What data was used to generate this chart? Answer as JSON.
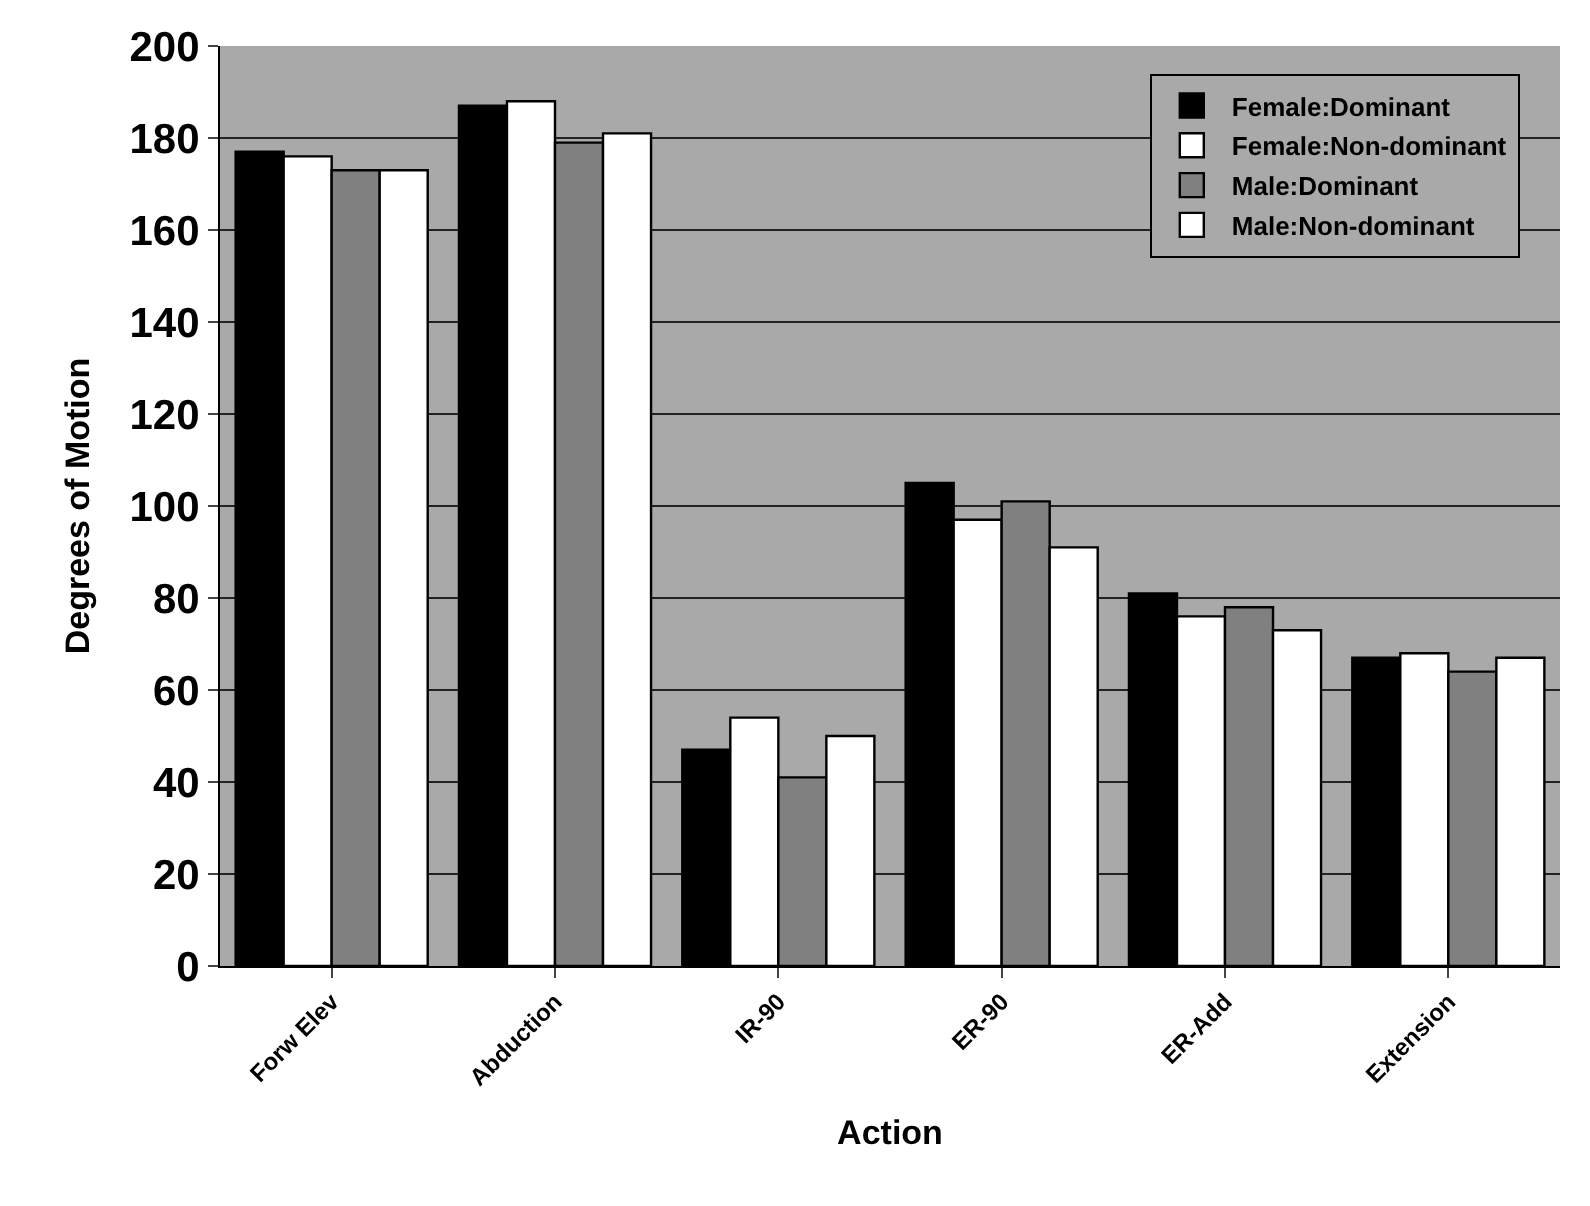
{
  "chart_data": {
    "type": "bar",
    "xlabel": "Action",
    "ylabel": "Degrees of Motion",
    "categories": [
      "Forw Elev",
      "Abduction",
      "IR-90",
      "ER-90",
      "ER-Add",
      "Extension"
    ],
    "series": [
      {
        "name": "Female:Dominant",
        "color": "#000000",
        "values": [
          177,
          187,
          47,
          105,
          81,
          67
        ]
      },
      {
        "name": "Female:Non-dominant",
        "color": "#ffffff",
        "values": [
          176,
          188,
          54,
          97,
          76,
          68
        ]
      },
      {
        "name": "Male:Dominant",
        "color": "#808080",
        "values": [
          173,
          179,
          41,
          101,
          78,
          64
        ]
      },
      {
        "name": "Male:Non-dominant",
        "color": "#ffffff",
        "values": [
          173,
          181,
          50,
          91,
          73,
          67
        ]
      }
    ],
    "ylim": [
      0,
      200
    ],
    "yticks": [
      0,
      20,
      40,
      60,
      80,
      100,
      120,
      140,
      160,
      180,
      200
    ],
    "grid": "y",
    "legend": "top right"
  }
}
